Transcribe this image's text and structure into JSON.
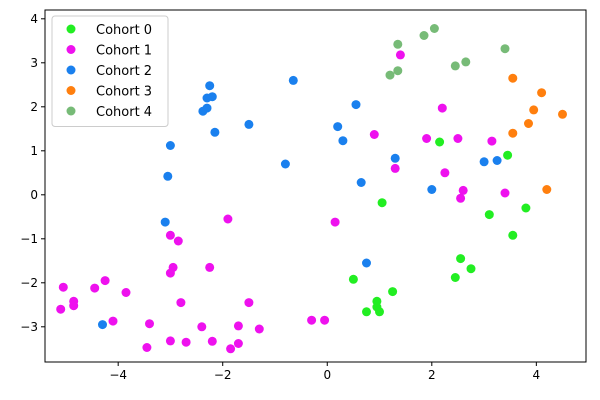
{
  "chart_data": {
    "type": "scatter",
    "title": "",
    "xlabel": "",
    "ylabel": "",
    "xlim": [
      -5.4,
      4.95
    ],
    "ylim": [
      -3.8,
      4.2
    ],
    "xticks": [
      -4,
      -2,
      0,
      2,
      4
    ],
    "yticks": [
      -3,
      -2,
      -1,
      0,
      1,
      2,
      3,
      4
    ],
    "grid": false,
    "legend_position": "top-left",
    "series": [
      {
        "name": "Cohort 0",
        "color": "#22ee22",
        "points": [
          [
            2.15,
            1.2
          ],
          [
            3.45,
            0.9
          ],
          [
            1.05,
            -0.18
          ],
          [
            3.1,
            -0.45
          ],
          [
            3.8,
            -0.3
          ],
          [
            3.55,
            -0.92
          ],
          [
            2.55,
            -1.45
          ],
          [
            2.75,
            -1.68
          ],
          [
            2.45,
            -1.88
          ],
          [
            0.5,
            -1.92
          ],
          [
            1.25,
            -2.2
          ],
          [
            0.95,
            -2.42
          ],
          [
            0.95,
            -2.55
          ],
          [
            0.75,
            -2.66
          ],
          [
            1.0,
            -2.66
          ]
        ]
      },
      {
        "name": "Cohort 1",
        "color": "#ee11ee",
        "points": [
          [
            1.4,
            3.18
          ],
          [
            2.2,
            1.97
          ],
          [
            0.9,
            1.37
          ],
          [
            1.9,
            1.28
          ],
          [
            2.5,
            1.28
          ],
          [
            3.15,
            1.22
          ],
          [
            2.25,
            0.5
          ],
          [
            1.3,
            0.6
          ],
          [
            2.6,
            0.1
          ],
          [
            3.4,
            0.04
          ],
          [
            2.55,
            -0.08
          ],
          [
            -1.9,
            -0.55
          ],
          [
            0.15,
            -0.62
          ],
          [
            -3.0,
            -0.92
          ],
          [
            -2.85,
            -1.05
          ],
          [
            -2.95,
            -1.65
          ],
          [
            -3.0,
            -1.78
          ],
          [
            -2.25,
            -1.65
          ],
          [
            -4.25,
            -1.95
          ],
          [
            -5.05,
            -2.1
          ],
          [
            -4.45,
            -2.12
          ],
          [
            -3.85,
            -2.22
          ],
          [
            -4.85,
            -2.42
          ],
          [
            -2.8,
            -2.45
          ],
          [
            -1.5,
            -2.45
          ],
          [
            -4.85,
            -2.52
          ],
          [
            -5.1,
            -2.6
          ],
          [
            -4.1,
            -2.87
          ],
          [
            -3.4,
            -2.93
          ],
          [
            -0.3,
            -2.85
          ],
          [
            -0.05,
            -2.85
          ],
          [
            -2.4,
            -3.0
          ],
          [
            -1.7,
            -2.98
          ],
          [
            -1.3,
            -3.05
          ],
          [
            -3.0,
            -3.32
          ],
          [
            -2.7,
            -3.35
          ],
          [
            -2.2,
            -3.33
          ],
          [
            -1.7,
            -3.38
          ],
          [
            -3.45,
            -3.47
          ],
          [
            -1.85,
            -3.5
          ]
        ]
      },
      {
        "name": "Cohort 2",
        "color": "#1a80ee",
        "points": [
          [
            -0.65,
            2.6
          ],
          [
            -2.25,
            2.48
          ],
          [
            -2.3,
            2.2
          ],
          [
            -2.2,
            2.23
          ],
          [
            -2.3,
            1.97
          ],
          [
            -2.38,
            1.9
          ],
          [
            0.55,
            2.05
          ],
          [
            -1.5,
            1.6
          ],
          [
            -2.15,
            1.42
          ],
          [
            0.2,
            1.55
          ],
          [
            0.3,
            1.23
          ],
          [
            -3.0,
            1.12
          ],
          [
            -0.8,
            0.7
          ],
          [
            1.3,
            0.83
          ],
          [
            3.0,
            0.75
          ],
          [
            3.25,
            0.78
          ],
          [
            -3.05,
            0.42
          ],
          [
            0.65,
            0.28
          ],
          [
            2.0,
            0.12
          ],
          [
            -3.1,
            -0.62
          ],
          [
            0.75,
            -1.55
          ],
          [
            -4.3,
            -2.95
          ]
        ]
      },
      {
        "name": "Cohort 3",
        "color": "#ff7f0e",
        "points": [
          [
            3.55,
            2.65
          ],
          [
            4.1,
            2.32
          ],
          [
            3.95,
            1.93
          ],
          [
            4.5,
            1.83
          ],
          [
            3.85,
            1.62
          ],
          [
            3.55,
            1.4
          ],
          [
            4.2,
            0.12
          ]
        ]
      },
      {
        "name": "Cohort 4",
        "color": "#77bb77",
        "points": [
          [
            2.05,
            3.78
          ],
          [
            1.85,
            3.62
          ],
          [
            1.35,
            3.42
          ],
          [
            3.4,
            3.32
          ],
          [
            2.65,
            3.02
          ],
          [
            2.45,
            2.93
          ],
          [
            1.35,
            2.82
          ],
          [
            1.2,
            2.72
          ]
        ]
      }
    ]
  }
}
